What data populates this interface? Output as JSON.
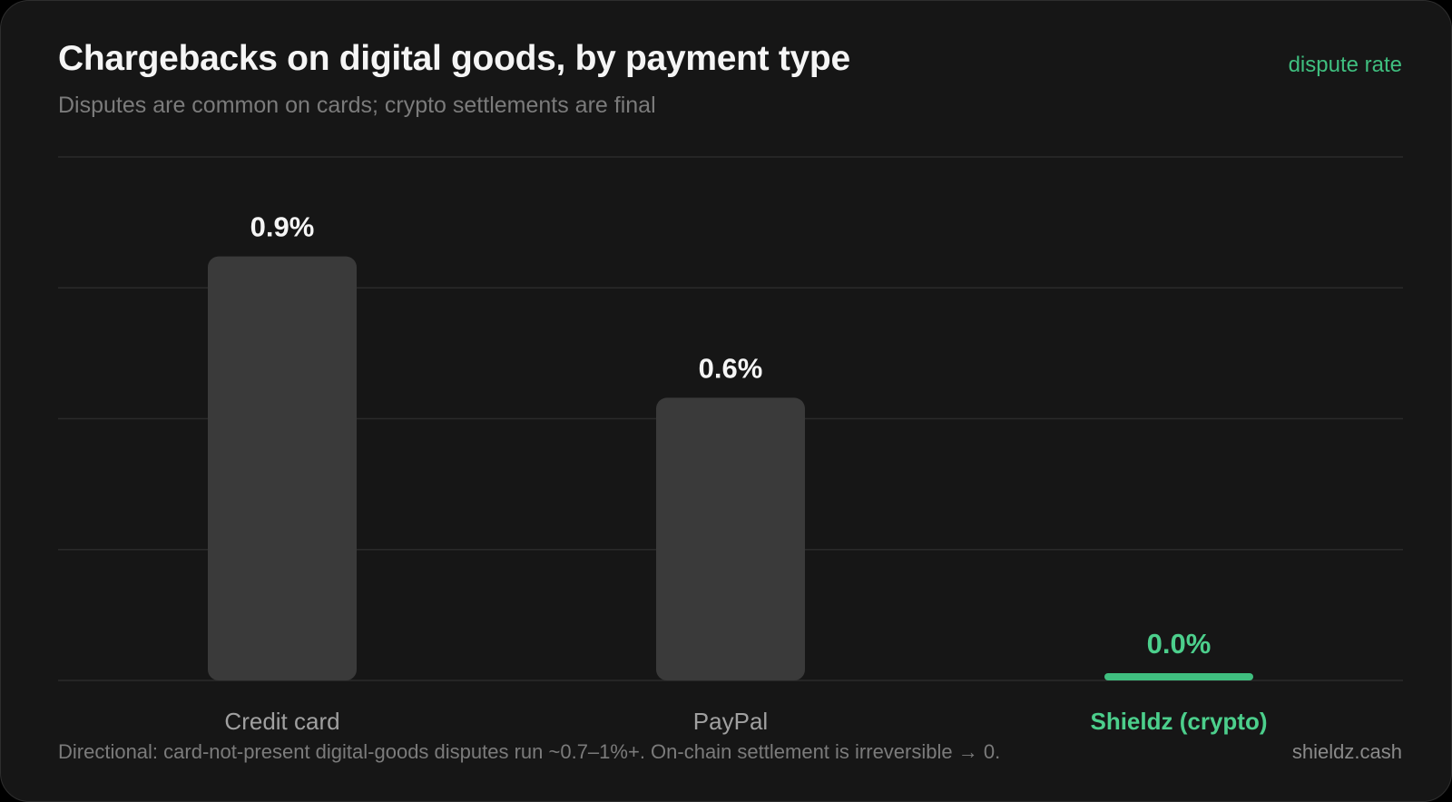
{
  "chart_data": {
    "type": "bar",
    "title": "Chargebacks on digital goods, by payment type",
    "subtitle": "Disputes are common on cards; crypto settlements are final",
    "legend_label": "dispute rate",
    "legend_placement": "top-right",
    "categories": [
      "Credit card",
      "PayPal",
      "Shieldz (crypto)"
    ],
    "values": [
      0.9,
      0.6,
      0.0
    ],
    "value_labels": [
      "0.9%",
      "0.6%",
      "0.0%"
    ],
    "highlight_index": 2,
    "ylim": [
      0,
      1.0
    ],
    "grid": true,
    "xlabel": "",
    "ylabel": ""
  },
  "colors": {
    "background": "#161616",
    "bar": "#3a3a3a",
    "highlight": "#3fbf7f",
    "value_text": "#f5f5f5",
    "category_text": "#a0a0a0",
    "highlight_text": "#4ccf8c"
  },
  "footnote": "Directional: card-not-present digital-goods disputes run ~0.7–1%+. On-chain settlement is irreversible → 0.",
  "source": "shieldz.cash"
}
